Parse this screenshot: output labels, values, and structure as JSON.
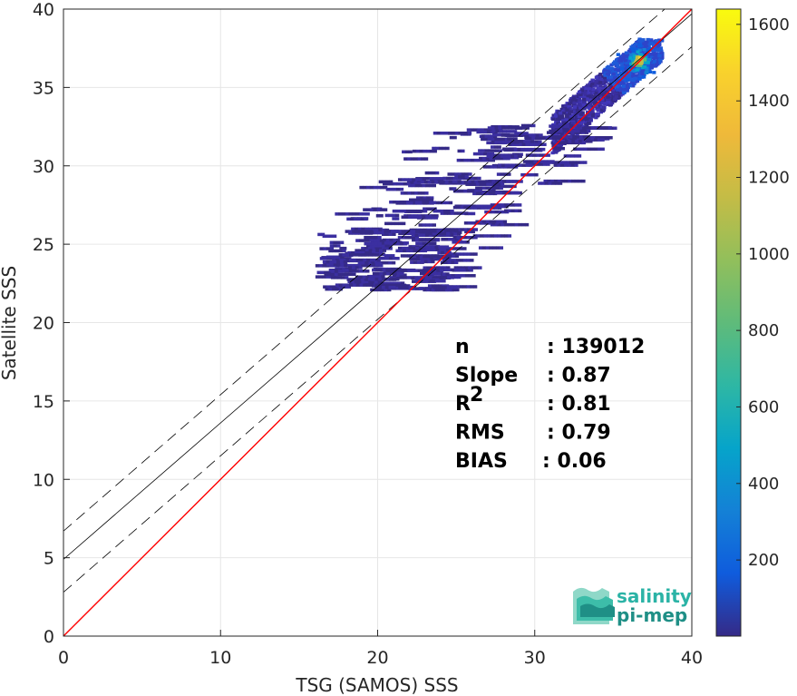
{
  "chart_data": {
    "type": "heatmap",
    "xlabel": "TSG (SAMOS) SSS",
    "ylabel": "Satellite SSS",
    "xlim": [
      0,
      40
    ],
    "ylim": [
      0,
      40
    ],
    "x_ticks": [
      "0",
      "10",
      "20",
      "30",
      "40"
    ],
    "y_ticks": [
      "0",
      "5",
      "10",
      "15",
      "20",
      "25",
      "30",
      "35",
      "40"
    ],
    "grid": true,
    "colorbar": {
      "range": [
        1,
        1640
      ],
      "ticks": [
        "200",
        "400",
        "600",
        "800",
        "1000",
        "1200",
        "1400",
        "1600"
      ],
      "colormap": "parula"
    },
    "lines": {
      "identity": {
        "slope": 1,
        "intercept": 0,
        "color": "#ff0000"
      },
      "regression": {
        "slope": 0.87,
        "intercept": 4.9,
        "color": "#000000"
      },
      "upper_band": {
        "slope": 0.87,
        "intercept": 6.7,
        "style": "dashed"
      },
      "lower_band": {
        "slope": 0.87,
        "intercept": 2.8,
        "style": "dashed"
      }
    },
    "density_clusters": [
      {
        "x": [
          31,
          38
        ],
        "y": [
          30.5,
          38
        ],
        "level": "high",
        "peak": [
          36.6,
          36.8
        ]
      },
      {
        "x": [
          24,
          38
        ],
        "y": [
          22,
          32
        ],
        "level": "low"
      },
      {
        "x": [
          16,
          26
        ],
        "y": [
          22,
          26
        ],
        "level": "low"
      }
    ],
    "stats": [
      {
        "label": "n",
        "value": ": 139012"
      },
      {
        "label": "Slope",
        "value": ": 0.87"
      },
      {
        "label": "R",
        "sup": "2",
        "value": ": 0.81"
      },
      {
        "label": "RMS",
        "value": ": 0.79"
      },
      {
        "label": "BIAS",
        "value": ": 0.06"
      }
    ]
  },
  "logo": {
    "line1": "salinity",
    "line2": "pi-mep"
  },
  "colors": {
    "identity": "#ff0000",
    "regression": "#000000",
    "logo": "#2bb3a6"
  }
}
